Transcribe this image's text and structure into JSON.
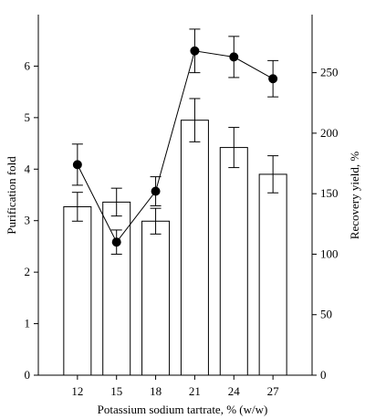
{
  "chart_data": {
    "type": "bar",
    "title": "",
    "xlabel": "Potassium sodium tartrate, % (w/w)",
    "ylabel": "Purification fold",
    "y2label": "Recovery yield, %",
    "categories": [
      "12",
      "15",
      "18",
      "21",
      "24",
      "27"
    ],
    "ylim": [
      0,
      7
    ],
    "yticks": [
      "0",
      "1",
      "2",
      "3",
      "4",
      "5",
      "6"
    ],
    "y2lim": [
      0,
      298
    ],
    "y2ticks": [
      "0",
      "50",
      "100",
      "150",
      "200",
      "250"
    ],
    "series": [
      {
        "name": "",
        "type": "bar",
        "axis": "left",
        "values": [
          3.27,
          3.36,
          2.99,
          4.95,
          4.42,
          3.9
        ],
        "errors": [
          0.28,
          0.27,
          0.25,
          0.42,
          0.39,
          0.36
        ],
        "color": "#ffffff"
      },
      {
        "name": "",
        "type": "line",
        "axis": "right",
        "marker": "filled-circle",
        "values": [
          174,
          110,
          152,
          268,
          263,
          245
        ],
        "errors": [
          17,
          10,
          12,
          18,
          17,
          15
        ],
        "color": "#000000"
      }
    ],
    "grid": false,
    "legend": "none"
  }
}
